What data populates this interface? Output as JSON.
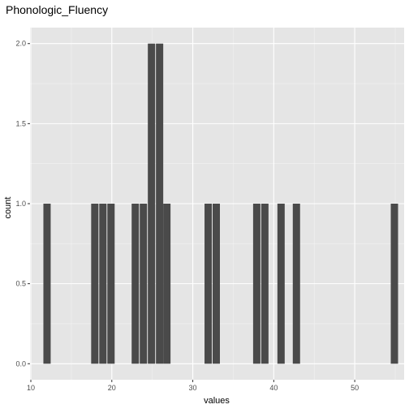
{
  "chart_data": {
    "type": "bar",
    "title": "Phonologic_Fluency",
    "xlabel": "values",
    "ylabel": "count",
    "xlim": [
      9.9,
      56.1
    ],
    "ylim": [
      -0.1,
      2.1
    ],
    "bin_width": 0.9,
    "x_ticks": [
      10,
      20,
      30,
      40,
      50
    ],
    "y_ticks": [
      0.0,
      0.5,
      1.0,
      1.5,
      2.0
    ],
    "y_tick_labels": [
      "0.0",
      "0.5",
      "1.0",
      "1.5",
      "2.0"
    ],
    "grid": true,
    "legend": "none",
    "bar_color": "#4a4a4a",
    "panel_background": "#e5e5e5",
    "bins": [
      {
        "x": 12.0,
        "count": 1
      },
      {
        "x": 17.9,
        "count": 1
      },
      {
        "x": 18.9,
        "count": 1
      },
      {
        "x": 19.9,
        "count": 1
      },
      {
        "x": 22.9,
        "count": 1
      },
      {
        "x": 23.9,
        "count": 1
      },
      {
        "x": 24.9,
        "count": 2
      },
      {
        "x": 25.9,
        "count": 2
      },
      {
        "x": 26.8,
        "count": 1
      },
      {
        "x": 31.9,
        "count": 1
      },
      {
        "x": 32.9,
        "count": 1
      },
      {
        "x": 37.9,
        "count": 1
      },
      {
        "x": 38.9,
        "count": 1
      },
      {
        "x": 40.9,
        "count": 1
      },
      {
        "x": 42.8,
        "count": 1
      },
      {
        "x": 54.9,
        "count": 1
      }
    ]
  }
}
